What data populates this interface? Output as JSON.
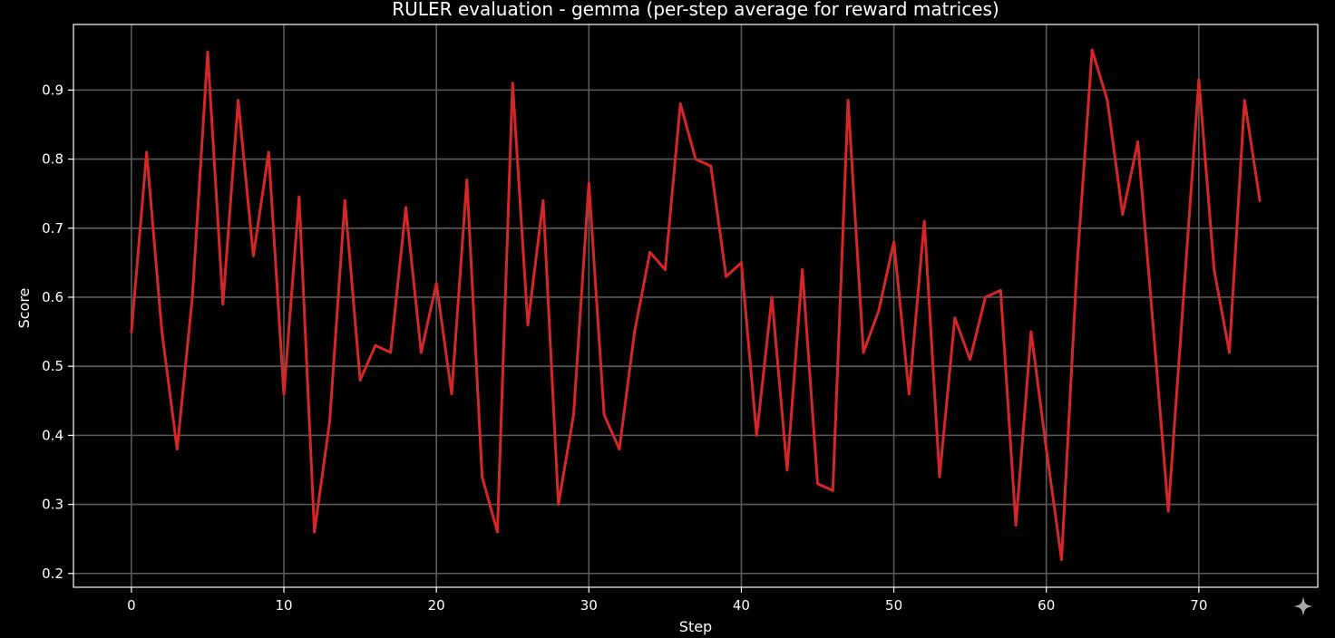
{
  "colors": {
    "background": "#000000",
    "line": "#d62728",
    "grid": "#5a5a5a",
    "text": "#ffffff"
  },
  "icons": {
    "corner": "sparkle-icon"
  },
  "chart_data": {
    "type": "line",
    "title": "RULER evaluation - gemma (per-step average for reward matrices)",
    "xlabel": "Step",
    "ylabel": "Score",
    "xlim": [
      -3.8,
      77.8
    ],
    "ylim": [
      0.18,
      0.995
    ],
    "grid": true,
    "x_ticks": [
      0,
      10,
      20,
      30,
      40,
      50,
      60,
      70
    ],
    "y_ticks": [
      0.2,
      0.3,
      0.4,
      0.5,
      0.6,
      0.7,
      0.8,
      0.9
    ],
    "y_tick_labels": [
      "0.2",
      "0.3",
      "0.4",
      "0.5",
      "0.6",
      "0.7",
      "0.8",
      "0.9"
    ],
    "series": [
      {
        "x": [
          0,
          1,
          2,
          3,
          4,
          5,
          6,
          7,
          8,
          9,
          10,
          11,
          12,
          13,
          14,
          15,
          16,
          17,
          18,
          19,
          20,
          21,
          22,
          23,
          24,
          25,
          26,
          27,
          28,
          29,
          30,
          31,
          32,
          33,
          34,
          35,
          36,
          37,
          38,
          39,
          40,
          41,
          42,
          43,
          44,
          45,
          46,
          47,
          48,
          49,
          50,
          51,
          52,
          53,
          54,
          55,
          56,
          57,
          58,
          59,
          60,
          61,
          62,
          63,
          64,
          65,
          66,
          67,
          68,
          69,
          70,
          71,
          72,
          73,
          74
        ],
        "values": [
          0.55,
          0.81,
          0.55,
          0.38,
          0.6,
          0.955,
          0.59,
          0.885,
          0.66,
          0.81,
          0.46,
          0.745,
          0.26,
          0.42,
          0.74,
          0.48,
          0.53,
          0.52,
          0.73,
          0.52,
          0.62,
          0.46,
          0.77,
          0.34,
          0.26,
          0.91,
          0.56,
          0.74,
          0.3,
          0.43,
          0.765,
          0.43,
          0.38,
          0.55,
          0.665,
          0.64,
          0.88,
          0.8,
          0.79,
          0.63,
          0.65,
          0.4,
          0.6,
          0.35,
          0.64,
          0.33,
          0.32,
          0.885,
          0.52,
          0.58,
          0.68,
          0.46,
          0.71,
          0.34,
          0.57,
          0.51,
          0.6,
          0.61,
          0.27,
          0.55,
          0.38,
          0.22,
          0.64,
          0.958,
          0.885,
          0.72,
          0.825,
          0.56,
          0.29,
          0.6,
          0.915,
          0.64,
          0.52,
          0.885,
          0.74
        ]
      }
    ]
  }
}
